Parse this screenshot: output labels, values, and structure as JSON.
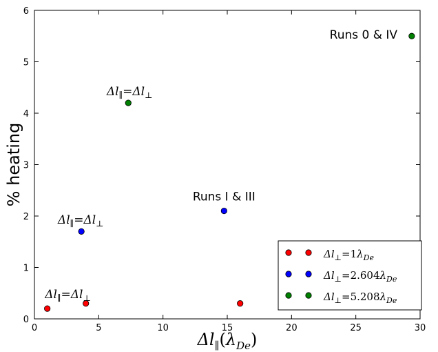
{
  "chart_data": {
    "type": "scatter",
    "title": "",
    "xlabel": "Δl∥(λDe)",
    "ylabel": "% heating",
    "xlim": [
      0,
      30
    ],
    "ylim": [
      0,
      6
    ],
    "xticks": [
      0,
      5,
      10,
      15,
      20,
      25,
      30
    ],
    "yticks": [
      0,
      1,
      2,
      3,
      4,
      5,
      6
    ],
    "grid": false,
    "legend_position": "bottom-right",
    "series": [
      {
        "name": "Δl⊥=1λDe",
        "color": "#ff0000",
        "points": [
          [
            1.0,
            0.2
          ],
          [
            4.0,
            0.3
          ],
          [
            16.0,
            0.3
          ]
        ]
      },
      {
        "name": "Δl⊥=2.604λDe",
        "color": "#0000ff",
        "points": [
          [
            3.65,
            1.7
          ],
          [
            14.75,
            2.1
          ]
        ]
      },
      {
        "name": "Δl⊥=5.208λDe",
        "color": "#008000",
        "points": [
          [
            7.3,
            4.2
          ],
          [
            29.35,
            5.5
          ]
        ]
      }
    ],
    "annotations": [
      {
        "text": "Δl∥=Δl⊥",
        "x": 2.6,
        "y": 0.4
      },
      {
        "text": "Δl∥=Δl⊥",
        "x": 3.6,
        "y": 1.85
      },
      {
        "text": "Δl∥=Δl⊥",
        "x": 7.4,
        "y": 4.35
      },
      {
        "text": "Runs I & III",
        "x": 14.75,
        "y": 2.3
      },
      {
        "text": "Runs 0 & IV",
        "x": 25.6,
        "y": 5.45
      }
    ]
  }
}
